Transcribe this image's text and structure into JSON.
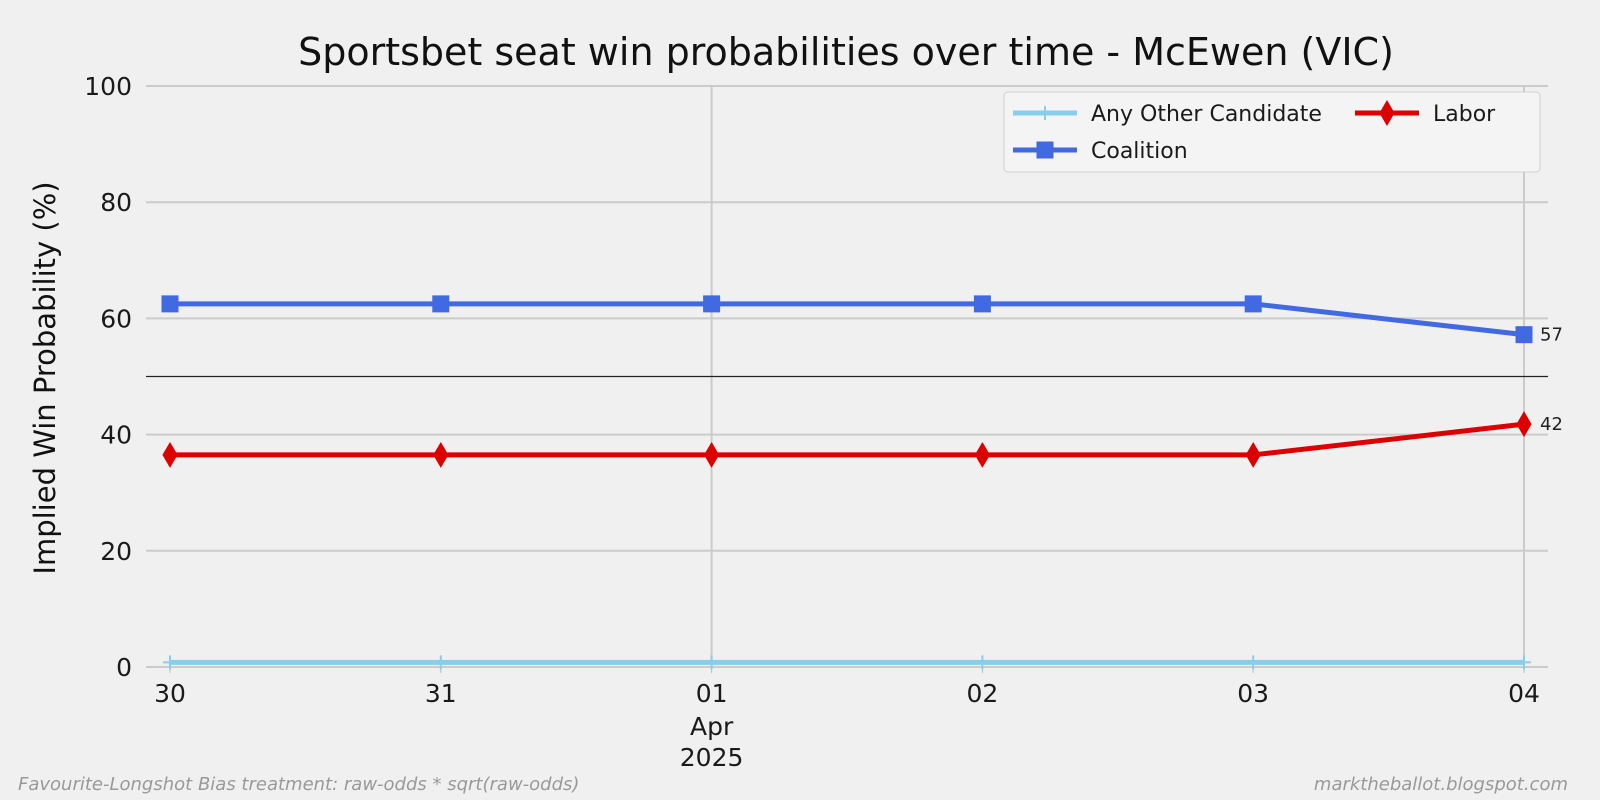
{
  "chart_data": {
    "type": "line",
    "title": "Sportsbet seat win probabilities over time - McEwen (VIC)",
    "ylabel": "Implied Win Probability (%)",
    "xlabel": "",
    "ylim": [
      0,
      100
    ],
    "yticks": [
      "0",
      "20",
      "40",
      "60",
      "80",
      "100"
    ],
    "x": [
      "2025-03-30",
      "2025-03-31",
      "2025-04-01",
      "2025-04-02",
      "2025-04-03",
      "2025-04-04"
    ],
    "xtick_labels": [
      "30",
      "31",
      "01",
      "02",
      "03",
      "04"
    ],
    "xtick_sublabel": {
      "month": "Apr",
      "year": "2025",
      "under_index": 2
    },
    "reference_line_y": 50,
    "grid": true,
    "legend_position": "top-right",
    "series": [
      {
        "name": "Any Other Candidate",
        "color": "#87ceeb",
        "marker": "plus",
        "values": [
          0.8,
          0.8,
          0.8,
          0.8,
          0.8,
          0.8
        ]
      },
      {
        "name": "Coalition",
        "color": "#4169e1",
        "marker": "square",
        "values": [
          62.5,
          62.5,
          62.5,
          62.5,
          62.5,
          57.2
        ],
        "end_label": "57"
      },
      {
        "name": "Labor",
        "color": "#dd0000",
        "marker": "diamond",
        "values": [
          36.5,
          36.5,
          36.5,
          36.5,
          36.5,
          41.8
        ],
        "end_label": "42"
      }
    ],
    "legend_order": [
      "Any Other Candidate",
      "Coalition",
      "Labor"
    ]
  },
  "footer": {
    "left": "Favourite-Longshot Bias treatment: raw-odds * sqrt(raw-odds)",
    "right": "marktheballot.blogspot.com"
  }
}
